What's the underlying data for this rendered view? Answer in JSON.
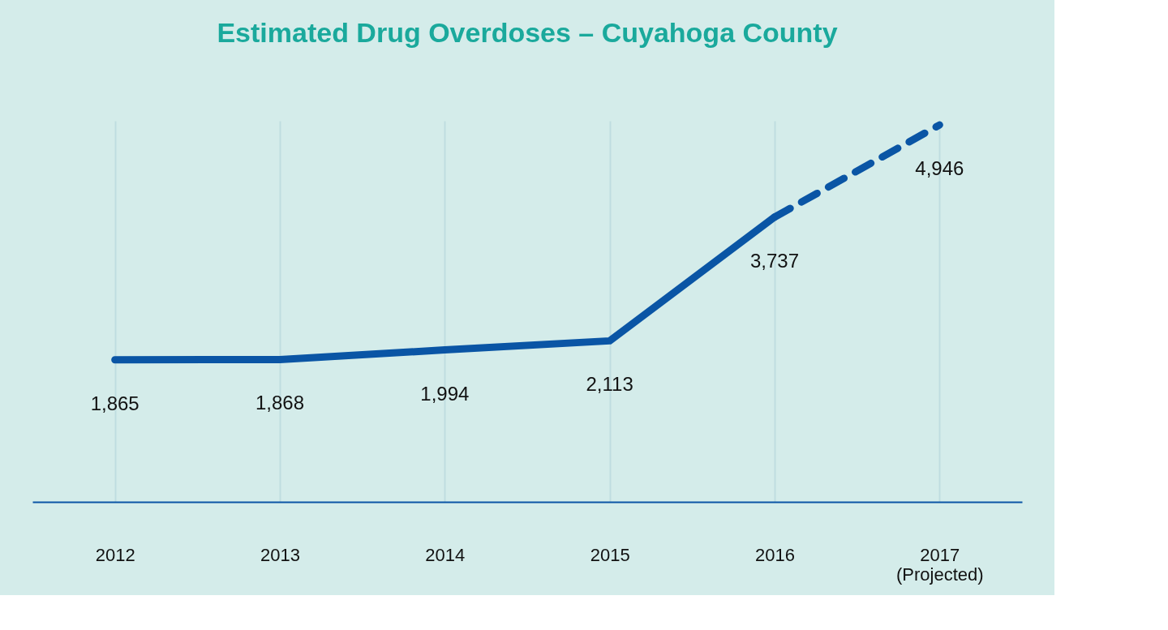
{
  "chart_data": {
    "type": "line",
    "title": "Estimated Drug Overdoses – Cuyahoga County",
    "categories": [
      "2012",
      "2013",
      "2014",
      "2015",
      "2016",
      "2017 (Projected)"
    ],
    "series": [
      {
        "color": "#0a55a5",
        "line_style": "solid",
        "values": [
          1865,
          1868,
          1994,
          2113,
          3737,
          null
        ],
        "value_labels": [
          "1,865",
          "1,868",
          "1,994",
          "2,113",
          "3,737",
          null
        ]
      },
      {
        "color": "#0a55a5",
        "line_style": "dashed",
        "values": [
          null,
          null,
          null,
          null,
          3737,
          4946
        ],
        "value_labels": [
          null,
          null,
          null,
          null,
          null,
          "4,946"
        ]
      }
    ],
    "grid": "x",
    "marker": "none",
    "tick_labels": "x"
  }
}
